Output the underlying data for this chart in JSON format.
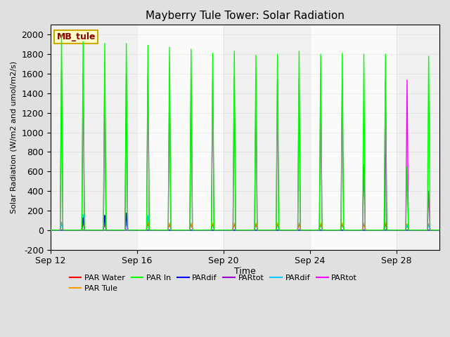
{
  "title": "Mayberry Tule Tower: Solar Radiation",
  "ylabel": "Solar Radiation (W/m2 and umol/m2/s)",
  "xlabel": "Time",
  "ylim": [
    -200,
    2100
  ],
  "yticks": [
    -200,
    0,
    200,
    400,
    600,
    800,
    1000,
    1200,
    1400,
    1600,
    1800,
    2000
  ],
  "annotation_text": "MB_tule",
  "annotation_color": "#8B0000",
  "annotation_bg": "#ffffcc",
  "annotation_border": "#ccaa00",
  "legend_items": [
    {
      "label": "PAR Water",
      "color": "#ff0000"
    },
    {
      "label": "PAR Tule",
      "color": "#ff9900"
    },
    {
      "label": "PAR In",
      "color": "#00ff00"
    },
    {
      "label": "PARdif",
      "color": "#0000ff"
    },
    {
      "label": "PARtot",
      "color": "#9900cc"
    },
    {
      "label": "PARdif",
      "color": "#00ccff"
    },
    {
      "label": "PARtot",
      "color": "#ff00ff"
    }
  ],
  "line_colors": {
    "green": "#00ff00",
    "magenta": "#ff00ff",
    "red": "#ff0000",
    "orange": "#ff9900",
    "blue": "#0000ff",
    "purple": "#9900cc",
    "cyan": "#00ccff"
  },
  "day_centers": [
    0.5,
    1.5,
    2.5,
    3.5,
    4.5,
    5.5,
    6.5,
    7.5,
    8.5,
    9.5,
    10.5,
    11.5,
    12.5,
    13.5,
    14.5,
    15.5,
    16.5,
    17.5
  ],
  "green_heights": [
    2000,
    1930,
    1910,
    1910,
    1890,
    1870,
    1850,
    1810,
    1830,
    1790,
    1800,
    1830,
    1800,
    1810,
    1800,
    1800,
    650,
    1780
  ],
  "magenta_heights": [
    1640,
    1600,
    1600,
    1600,
    1590,
    1570,
    1560,
    1540,
    1560,
    1530,
    1540,
    1555,
    1540,
    1550,
    670,
    1535,
    1535,
    400
  ],
  "red_heights": [
    65,
    70,
    65,
    70,
    65,
    60,
    60,
    60,
    60,
    60,
    60,
    60,
    60,
    60,
    60,
    65,
    60,
    60
  ],
  "orange_heights": [
    80,
    85,
    80,
    85,
    80,
    75,
    75,
    75,
    75,
    75,
    75,
    75,
    75,
    75,
    75,
    75,
    65,
    65
  ],
  "blue_heights": [
    0,
    125,
    150,
    175,
    0,
    0,
    0,
    0,
    0,
    0,
    0,
    0,
    0,
    0,
    0,
    0,
    0,
    0
  ],
  "cyan_heights": [
    80,
    160,
    155,
    165,
    150,
    0,
    0,
    0,
    0,
    0,
    0,
    0,
    0,
    0,
    0,
    0,
    50,
    60
  ],
  "purple_heights": [
    0,
    0,
    0,
    0,
    0,
    0,
    0,
    0,
    0,
    0,
    0,
    0,
    0,
    0,
    0,
    1450,
    0,
    0
  ],
  "spike_halfwidth": 0.06,
  "num_pts": 8641,
  "total_days": 18,
  "xtick_positions": [
    0,
    4,
    8,
    12,
    16
  ],
  "xtick_labels": [
    "Sep 12",
    "Sep 16",
    "Sep 20",
    "Sep 24",
    "Sep 28"
  ]
}
